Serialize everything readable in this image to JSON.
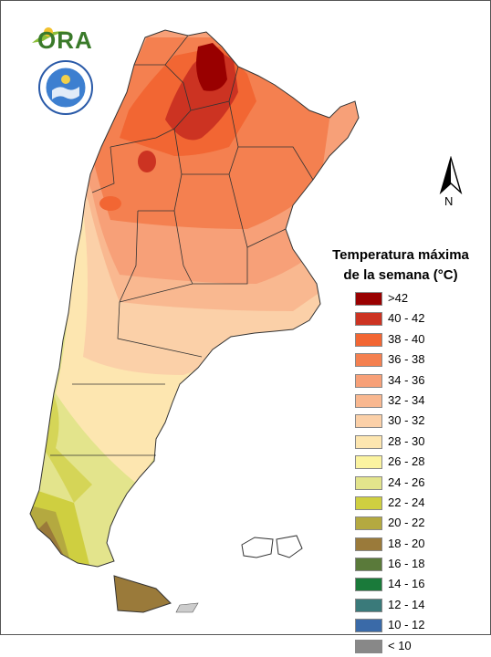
{
  "logos": {
    "ora_text": "ORA",
    "smn_icon": "servicio-meteorologico-seal-icon"
  },
  "north_arrow": {
    "label": "N",
    "icon": "north-arrow-icon"
  },
  "legend": {
    "title_line1": "Temperatura máxima",
    "title_line2": "de la semana (°C)",
    "items": [
      {
        "label": ">42",
        "color": "#990000"
      },
      {
        "label": "40 - 42",
        "color": "#cc3322"
      },
      {
        "label": "38 - 40",
        "color": "#f26633"
      },
      {
        "label": "36 - 38",
        "color": "#f48050"
      },
      {
        "label": "34 - 36",
        "color": "#f7a078"
      },
      {
        "label": "32 - 34",
        "color": "#f9b890"
      },
      {
        "label": "30 - 32",
        "color": "#fbd0a8"
      },
      {
        "label": "28 - 30",
        "color": "#fde6b0"
      },
      {
        "label": "26 - 28",
        "color": "#fbf3a0"
      },
      {
        "label": "24 - 26",
        "color": "#e3e48c"
      },
      {
        "label": "22 - 24",
        "color": "#cfcf40"
      },
      {
        "label": "20 - 22",
        "color": "#b4a940"
      },
      {
        "label": "18 - 20",
        "color": "#9a7a3a"
      },
      {
        "label": "16 - 18",
        "color": "#5a7a3a"
      },
      {
        "label": "14 - 16",
        "color": "#1a7a3a"
      },
      {
        "label": "12 - 14",
        "color": "#3a7a7a"
      },
      {
        "label": "10 - 12",
        "color": "#3a6aa8"
      },
      {
        "label": "< 10",
        "color": "#888888"
      }
    ]
  }
}
